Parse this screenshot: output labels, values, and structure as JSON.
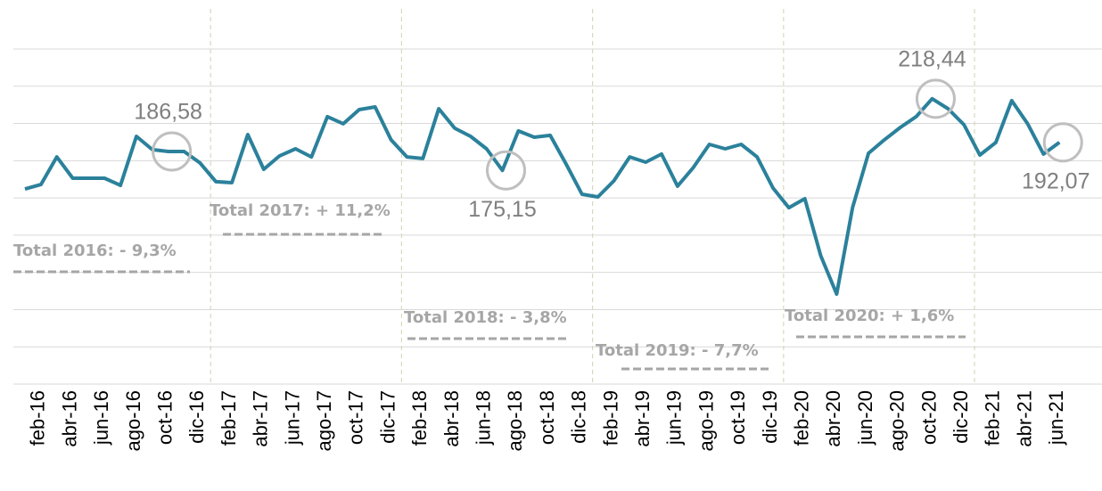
{
  "chart_data": {
    "type": "line",
    "categories": [
      null,
      "feb-16",
      null,
      "abr-16",
      null,
      "jun-16",
      null,
      "ago-16",
      null,
      "oct-16",
      null,
      "dic-16",
      null,
      "feb-17",
      null,
      "abr-17",
      null,
      "jun-17",
      null,
      "ago-17",
      null,
      "oct-17",
      null,
      "dic-17",
      null,
      "feb-18",
      null,
      "abr-18",
      null,
      "jun-18",
      null,
      "ago-18",
      null,
      "oct-18",
      null,
      "dic-18",
      null,
      "feb-19",
      null,
      "abr-19",
      null,
      "jun-19",
      null,
      "ago-19",
      null,
      "oct-19",
      null,
      "dic-19",
      null,
      "feb-20",
      null,
      "abr-20",
      null,
      "jun-20",
      null,
      "ago-20",
      null,
      "oct-20",
      null,
      "dic-20",
      null,
      "feb-21",
      null,
      "abr-21",
      null,
      "jun-21"
    ],
    "series": [
      {
        "color": "#2b819b",
        "values": [
          163.9,
          166.6,
          183.3,
          170.4,
          170.4,
          170.4,
          166.1,
          195.7,
          187.7,
          186.58,
          186.58,
          179.6,
          168.3,
          167.7,
          196.8,
          175.8,
          183.9,
          188.2,
          183.3,
          207.6,
          203.3,
          211.9,
          213.5,
          193.6,
          183.3,
          182.3,
          212.4,
          200.6,
          195.7,
          188.2,
          175.15,
          199.0,
          195.2,
          196.3,
          179.0,
          160.7,
          159.1,
          168.8,
          183.3,
          180.1,
          185.0,
          165.6,
          176.9,
          190.9,
          188.2,
          190.9,
          183.3,
          164.5,
          152.6,
          158.0,
          123.6,
          100.4,
          152.6,
          185.5,
          193.6,
          201.1,
          207.6,
          218.44,
          212.4,
          202.7,
          184.4,
          192.0,
          217.3,
          203.3,
          185.0,
          192.07
        ],
        "value_labels": [
          null,
          null,
          null,
          null,
          null,
          null,
          null,
          null,
          null,
          "186,58",
          null,
          null,
          null,
          null,
          null,
          null,
          null,
          null,
          null,
          null,
          null,
          null,
          null,
          null,
          null,
          null,
          null,
          null,
          null,
          null,
          "175,15",
          null,
          null,
          null,
          null,
          null,
          null,
          null,
          null,
          null,
          null,
          null,
          null,
          null,
          null,
          null,
          null,
          null,
          null,
          null,
          null,
          null,
          null,
          null,
          null,
          null,
          null,
          "218,44",
          null,
          null,
          null,
          null,
          null,
          null,
          null,
          "192,07"
        ]
      }
    ],
    "ylim": [
      46,
      248.5
    ],
    "yticks": [
      46,
      68.5,
      91,
      113.5,
      136,
      158.5,
      181,
      203.5,
      226,
      248.5
    ],
    "grid": true,
    "annotations": [
      "Total 2016: - 9,3%",
      "Total 2017: + 11,2%",
      "Total 2018: - 3,8%",
      "Total 2019: - 7,7%",
      "Total 2020: + 1,6%"
    ]
  }
}
